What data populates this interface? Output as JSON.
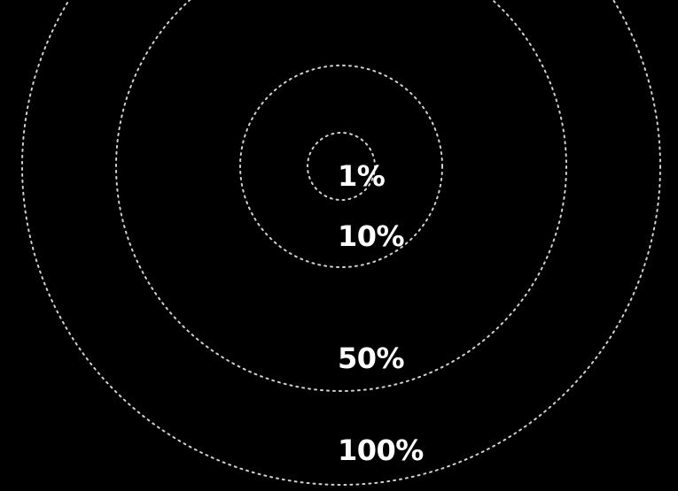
{
  "diagram": {
    "rings": [
      {
        "label": "1%"
      },
      {
        "label": "10%"
      },
      {
        "label": "50%"
      },
      {
        "label": "100%"
      }
    ]
  },
  "colors": {
    "background": "#000000",
    "ring_stroke": "#e8e8e8",
    "label_text": "#ffffff"
  }
}
